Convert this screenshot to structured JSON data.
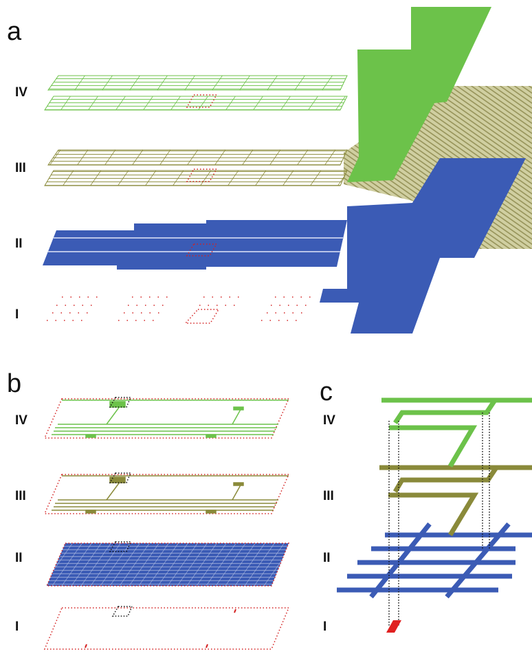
{
  "panels": [
    {
      "label": "a",
      "layers": [
        "IV",
        "III",
        "II",
        "I"
      ]
    },
    {
      "label": "b",
      "layers": [
        "IV",
        "III",
        "II",
        "I"
      ]
    },
    {
      "label": "c",
      "layers": [
        "IV",
        "III",
        "II",
        "I"
      ]
    }
  ]
}
